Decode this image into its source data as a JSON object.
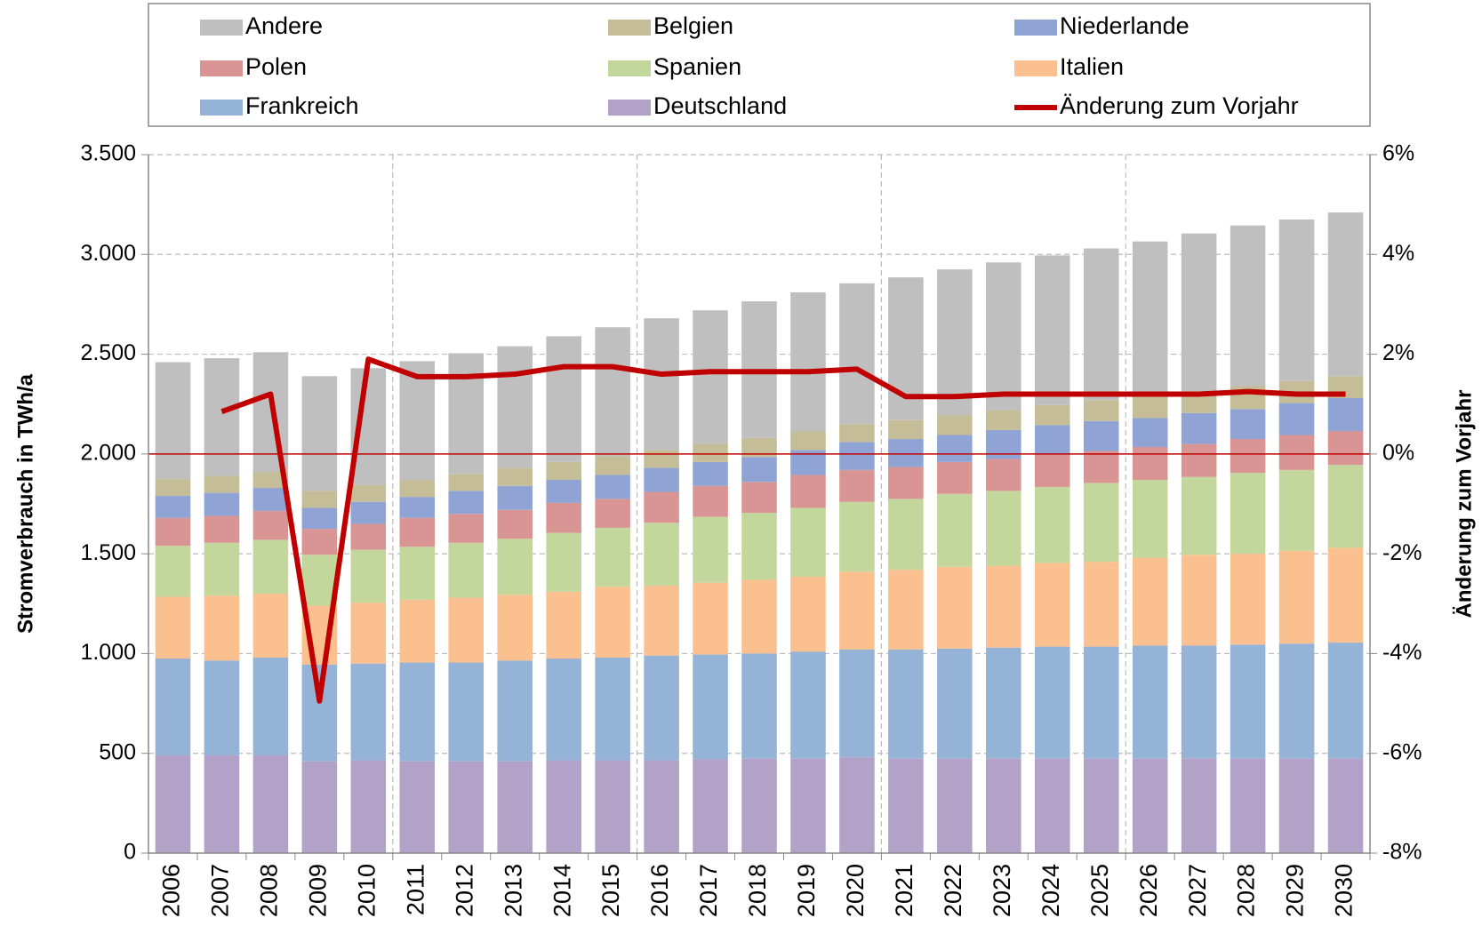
{
  "chart_data": {
    "type": "stacked-bar-line",
    "y_label": "Stromverbrauch in TWh/a",
    "y2_label": "Änderung zum Vorjahr",
    "categories": [
      "2006",
      "2007",
      "2008",
      "2009",
      "2010",
      "2011",
      "2012",
      "2013",
      "2014",
      "2015",
      "2016",
      "2017",
      "2018",
      "2019",
      "2020",
      "2021",
      "2022",
      "2023",
      "2024",
      "2025",
      "2026",
      "2027",
      "2028",
      "2029",
      "2030"
    ],
    "series": [
      {
        "name": "Deutschland",
        "color": "#b3a2c7",
        "values": [
          490,
          490,
          490,
          460,
          465,
          460,
          460,
          460,
          465,
          465,
          465,
          470,
          475,
          475,
          480,
          475,
          475,
          475,
          475,
          475,
          475,
          475,
          475,
          475,
          475
        ]
      },
      {
        "name": "Frankreich",
        "color": "#95b3d7",
        "values": [
          485,
          475,
          490,
          485,
          485,
          495,
          495,
          505,
          510,
          515,
          525,
          525,
          525,
          535,
          540,
          545,
          550,
          555,
          560,
          560,
          565,
          565,
          570,
          575,
          580
        ]
      },
      {
        "name": "Italien",
        "color": "#fac090",
        "values": [
          310,
          325,
          320,
          295,
          305,
          315,
          325,
          330,
          335,
          355,
          350,
          360,
          370,
          375,
          390,
          400,
          410,
          410,
          420,
          425,
          440,
          455,
          455,
          465,
          475
        ]
      },
      {
        "name": "Spanien",
        "color": "#c3d69b",
        "values": [
          255,
          265,
          270,
          255,
          265,
          265,
          275,
          280,
          295,
          295,
          315,
          330,
          335,
          345,
          350,
          355,
          365,
          375,
          380,
          395,
          390,
          390,
          405,
          405,
          415
        ]
      },
      {
        "name": "Polen",
        "color": "#d99594",
        "values": [
          140,
          135,
          145,
          130,
          130,
          145,
          145,
          145,
          150,
          145,
          155,
          155,
          155,
          165,
          160,
          160,
          160,
          160,
          165,
          160,
          165,
          165,
          170,
          175,
          170
        ]
      },
      {
        "name": "Niederlande",
        "color": "#8fa4d4",
        "values": [
          110,
          115,
          115,
          105,
          110,
          105,
          115,
          120,
          115,
          120,
          120,
          120,
          125,
          125,
          140,
          140,
          135,
          145,
          145,
          150,
          145,
          155,
          150,
          160,
          165
        ]
      },
      {
        "name": "Belgien",
        "color": "#c4bd97",
        "values": [
          85,
          85,
          80,
          85,
          85,
          85,
          85,
          90,
          90,
          95,
          90,
          90,
          95,
          95,
          90,
          95,
          100,
          100,
          100,
          105,
          110,
          110,
          115,
          110,
          110
        ]
      },
      {
        "name": "Andere",
        "color": "#bfbfbf",
        "values": [
          585,
          590,
          600,
          575,
          585,
          595,
          605,
          610,
          630,
          645,
          660,
          670,
          685,
          695,
          705,
          715,
          730,
          740,
          750,
          760,
          775,
          790,
          805,
          810,
          820
        ]
      },
      {
        "name": "Änderung zum Vorjahr",
        "color": "#c00000",
        "axis": "y2",
        "line": true,
        "values": [
          null,
          0.85,
          1.2,
          -4.95,
          1.9,
          1.55,
          1.55,
          1.6,
          1.75,
          1.75,
          1.6,
          1.65,
          1.65,
          1.65,
          1.7,
          1.15,
          1.15,
          1.2,
          1.2,
          1.2,
          1.2,
          1.2,
          1.25,
          1.2,
          1.2
        ]
      }
    ],
    "ylim": [
      0,
      3500
    ],
    "yticks": [
      0,
      500,
      {
        "value": 1000,
        "label": "1.000"
      },
      {
        "value": 1500,
        "label": "1.500"
      },
      {
        "value": 2000,
        "label": "2.000"
      },
      {
        "value": 2500,
        "label": "2.500"
      },
      {
        "value": 3000,
        "label": "3.000"
      },
      {
        "value": 3500,
        "label": "3.500"
      }
    ],
    "y2lim": [
      -8,
      6
    ],
    "y2ticks": [
      {
        "value": -8,
        "label": "-8%"
      },
      {
        "value": -6,
        "label": "-6%"
      },
      {
        "value": -4,
        "label": "-4%"
      },
      {
        "value": -2,
        "label": "-2%"
      },
      {
        "value": 0,
        "label": "0%"
      },
      {
        "value": 2,
        "label": "2%"
      },
      {
        "value": 4,
        "label": "4%"
      },
      {
        "value": 6,
        "label": "6%"
      }
    ],
    "grid": true,
    "legend": "top"
  }
}
